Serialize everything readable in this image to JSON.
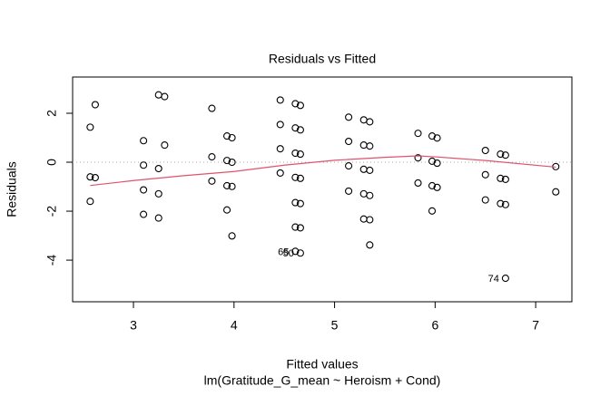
{
  "chart_data": {
    "type": "scatter",
    "title": "Residuals vs Fitted",
    "x_label": "Fitted values",
    "subtitle": "lm(Gratitude_G_mean ~ Heroism + Cond)",
    "y_label": "Residuals",
    "xlim": [
      2.395,
      7.36
    ],
    "ylim": [
      -5.7,
      3.48
    ],
    "xticks": [
      3,
      4,
      5,
      6,
      7
    ],
    "yticks": [
      -4,
      -2,
      0,
      2
    ],
    "reference_line": 0,
    "series": [
      {
        "type": "scatter",
        "color": "#000000",
        "x": [
          2.57,
          2.62,
          2.57,
          2.62,
          2.57,
          3.1,
          3.1,
          3.1,
          3.1,
          3.25,
          3.31,
          3.31,
          3.25,
          3.25,
          3.25,
          3.78,
          3.78,
          3.78,
          3.93,
          3.98,
          3.93,
          3.98,
          3.93,
          3.98,
          3.93,
          3.98,
          4.46,
          4.46,
          4.46,
          4.46,
          4.61,
          4.66,
          4.61,
          4.66,
          4.61,
          4.66,
          4.61,
          4.66,
          4.61,
          4.66,
          4.61,
          4.66,
          4.61,
          4.66,
          5.14,
          5.14,
          5.14,
          5.14,
          5.29,
          5.35,
          5.29,
          5.35,
          5.29,
          5.35,
          5.29,
          5.35,
          5.29,
          5.35,
          5.35,
          5.83,
          5.83,
          5.83,
          5.97,
          6.02,
          5.97,
          6.02,
          5.97,
          6.02,
          5.97,
          6.5,
          6.5,
          6.5,
          6.65,
          6.7,
          6.65,
          6.7,
          6.65,
          6.7,
          6.7,
          7.2,
          7.2
        ],
        "values": [
          1.43,
          2.35,
          -0.6,
          -0.63,
          -1.6,
          0.88,
          -0.12,
          -1.13,
          -2.13,
          2.75,
          2.68,
          0.7,
          -0.26,
          -1.29,
          -2.28,
          2.2,
          0.22,
          -0.77,
          1.07,
          1.0,
          0.07,
          0.0,
          -0.96,
          -0.99,
          -1.95,
          -3.01,
          2.54,
          1.54,
          0.55,
          -0.44,
          2.39,
          2.32,
          1.4,
          1.32,
          0.37,
          0.33,
          -0.62,
          -0.66,
          -1.65,
          -1.69,
          -2.65,
          -2.68,
          -3.64,
          -3.71,
          1.84,
          0.85,
          -0.15,
          -1.18,
          1.73,
          1.65,
          0.7,
          0.66,
          -0.29,
          -0.33,
          -1.29,
          -1.36,
          -2.32,
          -2.35,
          -3.38,
          1.18,
          0.18,
          -0.85,
          1.07,
          0.99,
          0.04,
          -0.04,
          -0.96,
          -1.03,
          -1.99,
          0.48,
          -0.51,
          -1.54,
          0.33,
          0.29,
          -0.66,
          -0.7,
          -1.69,
          -1.73,
          -4.74,
          -0.18,
          -1.21
        ]
      },
      {
        "type": "line",
        "color": "#df536b",
        "x": [
          2.57,
          3.0,
          3.5,
          4.0,
          4.5,
          5.0,
          5.5,
          5.83,
          6.0,
          6.5,
          7.2
        ],
        "values": [
          -0.95,
          -0.75,
          -0.55,
          -0.38,
          -0.12,
          0.08,
          0.2,
          0.26,
          0.22,
          0.07,
          -0.2
        ]
      }
    ],
    "annotations": [
      {
        "text": "65",
        "x": 4.61,
        "y": -3.64
      },
      {
        "text": "50",
        "x": 4.66,
        "y": -3.71
      },
      {
        "text": "74",
        "x": 6.7,
        "y": -4.74
      }
    ]
  }
}
